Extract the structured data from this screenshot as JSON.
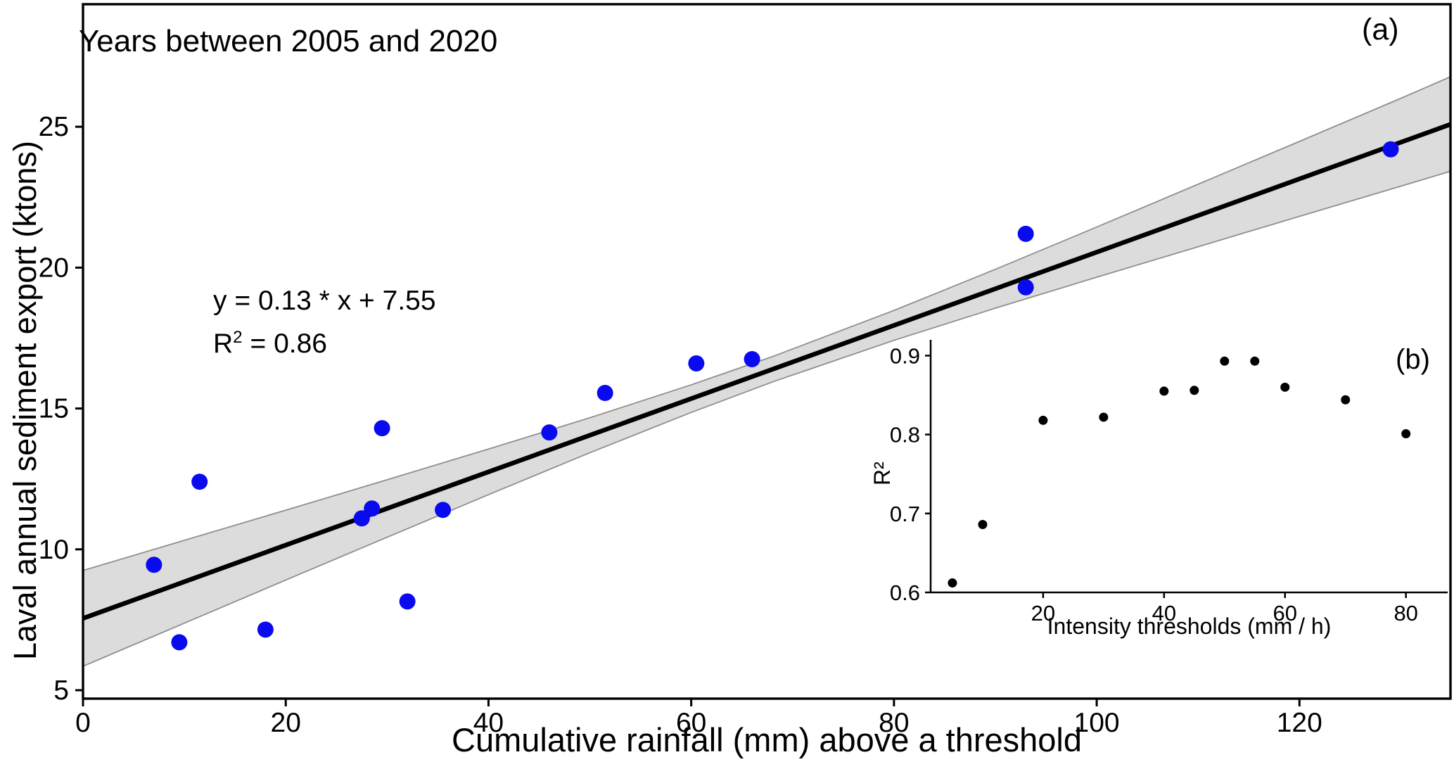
{
  "chart_data": [
    {
      "type": "scatter",
      "panel_label": "(a)",
      "annotation": "Years between 2005 and 2020",
      "xlabel": "Cumulative rainfall (mm) above a threshold",
      "ylabel": "Laval annual sediment export (ktons)",
      "xlim": [
        0,
        134.9
      ],
      "ylim": [
        4.7,
        29.35
      ],
      "xticks": [
        0,
        20,
        40,
        60,
        80,
        100,
        120
      ],
      "xtick_labels": [
        "0",
        "20",
        "40",
        "60",
        "80",
        "100",
        "120"
      ],
      "yticks": [
        5,
        10,
        15,
        20,
        25
      ],
      "ytick_labels": [
        "5",
        "10",
        "15",
        "20",
        "25"
      ],
      "grid": false,
      "legend": null,
      "marker_color": "#0a0af0",
      "points": [
        [
          7,
          9.45
        ],
        [
          9.5,
          6.7
        ],
        [
          11.5,
          12.4
        ],
        [
          18,
          7.15
        ],
        [
          27.5,
          11.1
        ],
        [
          28.5,
          11.45
        ],
        [
          29.5,
          14.3
        ],
        [
          32,
          8.15
        ],
        [
          35.5,
          11.4
        ],
        [
          46,
          14.15
        ],
        [
          51.5,
          15.55
        ],
        [
          60.5,
          16.6
        ],
        [
          66,
          16.75
        ],
        [
          93,
          21.2
        ],
        [
          93,
          19.3
        ],
        [
          129,
          24.2
        ]
      ],
      "fit": {
        "equation": "y = 0.13 * x + 7.55",
        "slope": 0.13,
        "intercept": 7.55,
        "r2_base": "R",
        "r2_sup": "2",
        "r2_rhs": " = 0.86",
        "r_squared": 0.86,
        "line_color": "#000000",
        "band_color": "#dcdcdc",
        "band_edge_color": "#8f8f8f",
        "band": {
          "x": [
            0,
            10,
            20,
            30,
            40,
            50,
            60,
            68,
            80,
            90,
            100,
            110,
            120,
            130,
            135
          ],
          "upper": [
            9.25,
            10.32,
            11.39,
            12.47,
            13.56,
            14.67,
            15.84,
            16.84,
            18.48,
            19.94,
            21.44,
            22.96,
            24.48,
            26.01,
            26.79
          ],
          "lower": [
            5.85,
            7.38,
            8.91,
            10.43,
            11.94,
            13.43,
            14.86,
            15.94,
            17.42,
            18.56,
            19.66,
            20.74,
            21.82,
            22.89,
            23.43
          ]
        }
      }
    },
    {
      "type": "scatter",
      "panel_label": "(b)",
      "xlabel": "Intensity thresholds (mm / h)",
      "ylabel": "R²",
      "xlim": [
        1.4,
        86.9
      ],
      "ylim": [
        0.6,
        0.92
      ],
      "xticks": [
        20,
        40,
        60,
        80
      ],
      "xtick_labels": [
        "20",
        "40",
        "60",
        "80"
      ],
      "yticks": [
        0.6,
        0.7,
        0.8,
        0.9
      ],
      "ytick_labels": [
        "0.6",
        "0.7",
        "0.8",
        "0.9"
      ],
      "grid": false,
      "legend": null,
      "marker_color": "#000000",
      "points": [
        [
          5,
          0.612
        ],
        [
          10,
          0.686
        ],
        [
          20,
          0.818
        ],
        [
          30,
          0.822
        ],
        [
          40,
          0.855
        ],
        [
          45,
          0.856
        ],
        [
          50,
          0.893
        ],
        [
          55,
          0.893
        ],
        [
          60,
          0.86
        ],
        [
          70,
          0.844
        ],
        [
          80,
          0.801
        ]
      ]
    }
  ]
}
